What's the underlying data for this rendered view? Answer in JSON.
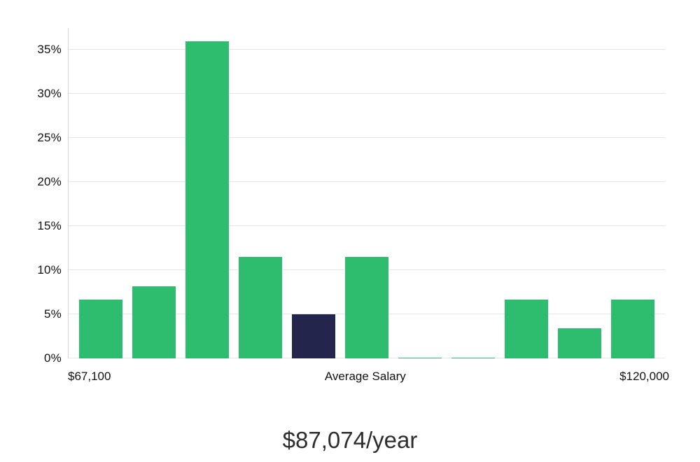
{
  "chart_data": {
    "type": "bar",
    "title": "$87,074/year",
    "x_axis": {
      "left_label": "$67,100",
      "center_label": "Average Salary",
      "right_label": "$120,000"
    },
    "y_ticks": [
      0,
      5,
      10,
      15,
      20,
      25,
      30,
      35
    ],
    "y_tick_suffix": "%",
    "ylim": [
      0,
      37.5
    ],
    "values": [
      6.7,
      8.2,
      36.0,
      11.5,
      5.0,
      11.5,
      0.1,
      0.1,
      6.7,
      3.4,
      6.7
    ],
    "highlight_index": 4,
    "grid": true,
    "legend": null,
    "colors": {
      "bar": "#2ebd6f",
      "highlight": "#23254c",
      "gridline": "#e5e5e5",
      "axis": "#d6d6d6"
    }
  }
}
